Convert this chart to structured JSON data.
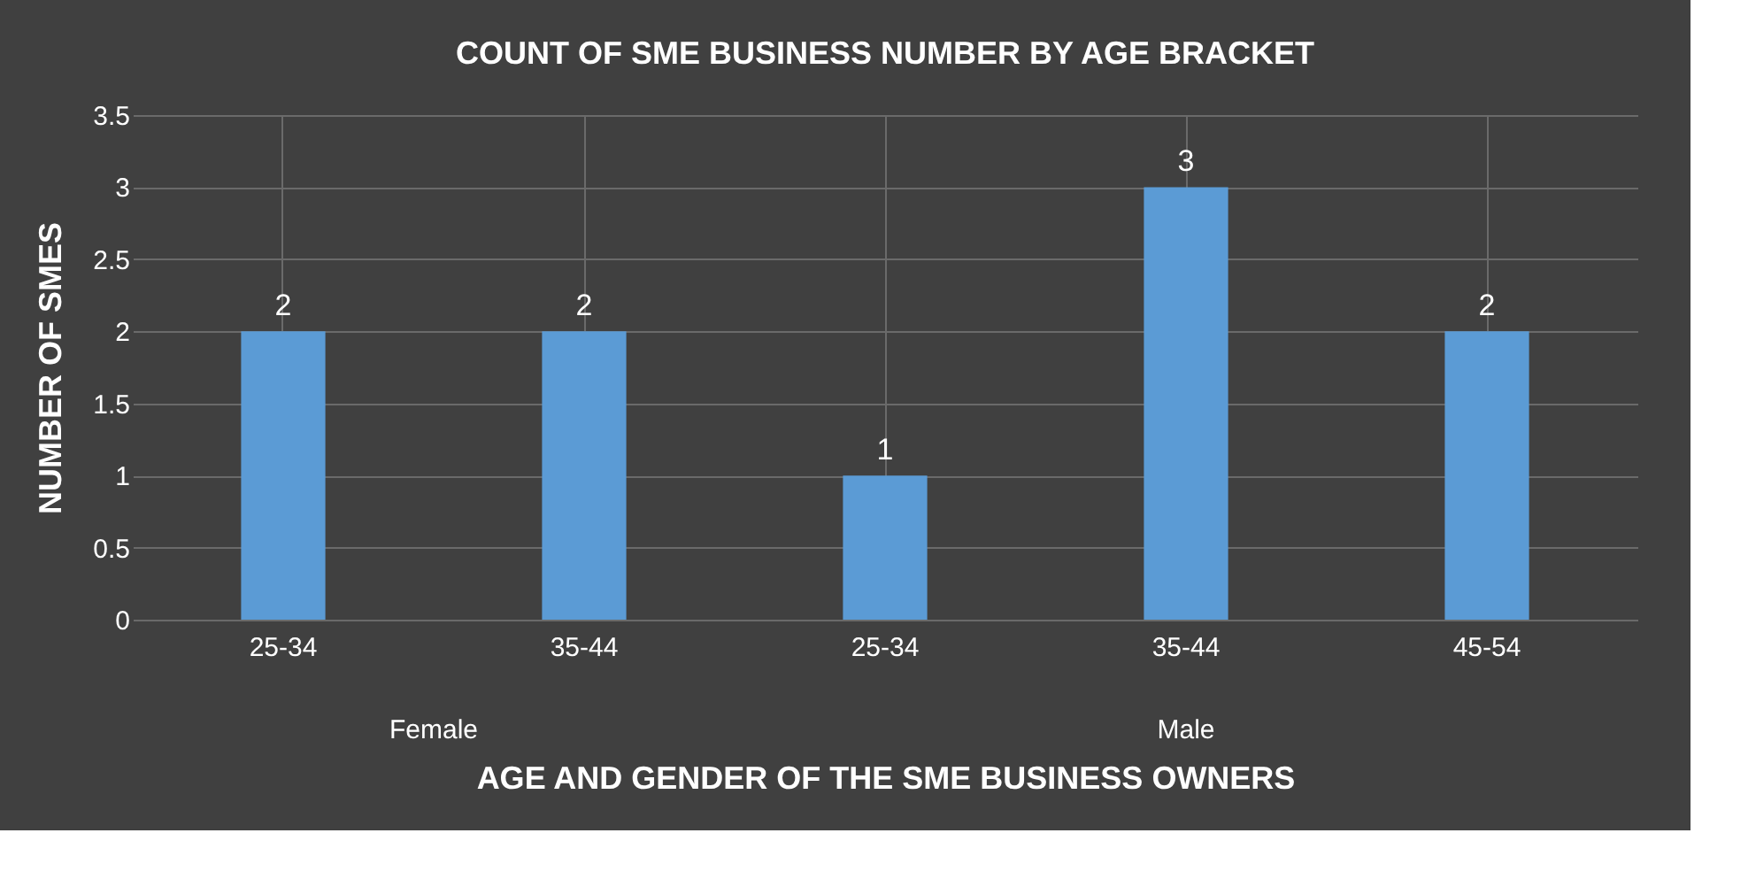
{
  "chart_data": {
    "type": "bar",
    "title": "COUNT OF SME BUSINESS NUMBER BY AGE BRACKET",
    "xlabel": "AGE AND GENDER OF THE SME BUSINESS OWNERS",
    "ylabel": "NUMBER OF SMES",
    "categories": [
      "25-34",
      "35-44",
      "25-34",
      "35-44",
      "45-54"
    ],
    "values": [
      2,
      2,
      1,
      3,
      2
    ],
    "color": "#5b9bd5",
    "annotations": [
      "Female",
      "Male"
    ],
    "ylim": [
      0,
      3.5
    ],
    "yticks": [
      0,
      0.5,
      1,
      1.5,
      2,
      2.5,
      3,
      3.5
    ],
    "grid": true,
    "data_labels": true
  }
}
